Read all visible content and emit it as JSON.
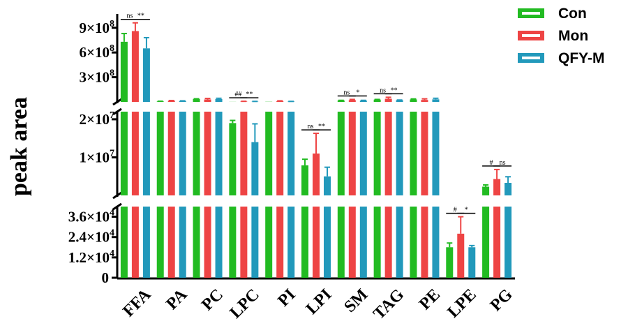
{
  "chart_data": {
    "type": "bar",
    "ylabel": "peak area",
    "categories": [
      "FFA",
      "PA",
      "PC",
      "LPC",
      "PI",
      "LPI",
      "SM",
      "TAG",
      "PE",
      "LPE",
      "PG"
    ],
    "colors": {
      "Con": "#22bb22",
      "Mon": "#ee4444",
      "QFY-M": "#2299bb"
    },
    "series": [
      {
        "name": "Con",
        "values": [
          730000000,
          0,
          0,
          0,
          0,
          7900000,
          0,
          0,
          0,
          18000,
          2300000
        ],
        "errors": [
          100000000,
          0,
          0,
          0,
          0,
          1600000,
          0,
          0,
          0,
          2500,
          450000
        ]
      },
      {
        "name": "Mon",
        "values": [
          860000000,
          0,
          0,
          0,
          0,
          11000000,
          0,
          0,
          0,
          26000,
          4300000
        ],
        "errors": [
          100000000,
          0,
          0,
          0,
          0,
          5300000,
          0,
          0,
          0,
          10000,
          2500000
        ]
      },
      {
        "name": "QFY-M",
        "values": [
          650000000,
          0,
          0,
          0,
          0,
          5000000,
          0,
          0,
          0,
          18000,
          3300000
        ],
        "errors": [
          130000000,
          0,
          0,
          0,
          0,
          2400000,
          0,
          0,
          0,
          1000,
          1600000
        ]
      }
    ],
    "segments": [
      {
        "name": "top",
        "ylim": [
          0,
          1000000000
        ],
        "ticks": [
          {
            "value": 300000000,
            "label": "3×10",
            "exp": "8"
          },
          {
            "value": 600000000,
            "label": "6×10",
            "exp": "8"
          },
          {
            "value": 900000000,
            "label": "9×10",
            "exp": "8"
          }
        ],
        "values": {
          "Con": [
            730000000,
            6000000,
            35000000,
            1000000,
            2000000,
            0,
            17000000,
            28000000,
            30000000,
            0,
            0
          ],
          "Mon": [
            860000000,
            13000000,
            30000000,
            4000000,
            10000000,
            0,
            22000000,
            38000000,
            24000000,
            0,
            0
          ],
          "QFY-M": [
            650000000,
            10000000,
            35000000,
            2000000,
            4000000,
            0,
            15000000,
            21000000,
            31000000,
            0,
            0
          ]
        },
        "errors": {
          "Con": [
            100000000,
            2000000,
            3000000,
            0,
            0,
            0,
            2000000,
            2000000,
            6000000,
            0,
            0
          ],
          "Mon": [
            100000000,
            4000000,
            12000000,
            3000000,
            3000000,
            0,
            8000000,
            18000000,
            13000000,
            0,
            0
          ],
          "QFY-M": [
            130000000,
            3000000,
            9000000,
            4000000,
            2000000,
            0,
            4000000,
            2000000,
            13000000,
            0,
            0
          ]
        }
      },
      {
        "name": "middle",
        "ylim": [
          0,
          22000000
        ],
        "ticks": [
          {
            "value": 10000000,
            "label": "1×10",
            "exp": "7"
          },
          {
            "value": 20000000,
            "label": "2×10",
            "exp": "7"
          }
        ],
        "values": {
          "Con": [
            22000000,
            22000000,
            22000000,
            19000000,
            22000000,
            7900000,
            22000000,
            22000000,
            22000000,
            0,
            2300000
          ],
          "Mon": [
            22000000,
            22000000,
            22000000,
            22000000,
            22000000,
            11000000,
            22000000,
            22000000,
            22000000,
            0,
            4300000
          ],
          "QFY-M": [
            22000000,
            22000000,
            22000000,
            14000000,
            22000000,
            5000000,
            22000000,
            22000000,
            22000000,
            0,
            3300000
          ]
        },
        "errors": {
          "Con": [
            0,
            0,
            0,
            700000,
            0,
            1600000,
            0,
            0,
            0,
            0,
            450000
          ],
          "Mon": [
            0,
            0,
            0,
            0,
            0,
            5300000,
            0,
            0,
            0,
            0,
            2500000
          ],
          "QFY-M": [
            0,
            0,
            0,
            4800000,
            0,
            2400000,
            0,
            0,
            0,
            0,
            1600000
          ]
        }
      },
      {
        "name": "bottom",
        "ylim": [
          0,
          42000
        ],
        "ticks": [
          {
            "value": 0,
            "label": "0",
            "exp": ""
          },
          {
            "value": 12000,
            "label": "1.2×10",
            "exp": "4"
          },
          {
            "value": 24000,
            "label": "2.4×10",
            "exp": "4"
          },
          {
            "value": 36000,
            "label": "3.6×10",
            "exp": "4"
          }
        ],
        "values": {
          "Con": [
            42000,
            42000,
            42000,
            42000,
            42000,
            42000,
            42000,
            42000,
            42000,
            18000,
            42000
          ],
          "Mon": [
            42000,
            42000,
            42000,
            42000,
            42000,
            42000,
            42000,
            42000,
            42000,
            26000,
            42000
          ],
          "QFY-M": [
            42000,
            42000,
            42000,
            42000,
            42000,
            42000,
            42000,
            42000,
            42000,
            18000,
            42000
          ]
        },
        "errors": {
          "Con": [
            0,
            0,
            0,
            0,
            0,
            0,
            0,
            0,
            0,
            2500,
            0
          ],
          "Mon": [
            0,
            0,
            0,
            0,
            0,
            0,
            0,
            0,
            0,
            10000,
            0
          ],
          "QFY-M": [
            0,
            0,
            0,
            0,
            0,
            0,
            0,
            0,
            0,
            1000,
            0
          ]
        }
      }
    ],
    "significance": [
      {
        "category": "FFA",
        "pair": "Con-Mon",
        "segment": "top",
        "text": "ns"
      },
      {
        "category": "FFA",
        "pair": "Mon-QFY-M",
        "segment": "top",
        "text": "**"
      },
      {
        "category": "LPC",
        "pair": "Con-Mon",
        "segment": "top",
        "text": "##"
      },
      {
        "category": "LPC",
        "pair": "Mon-QFY-M",
        "segment": "top",
        "text": "**"
      },
      {
        "category": "LPI",
        "pair": "Con-Mon",
        "segment": "middle",
        "text": "ns"
      },
      {
        "category": "LPI",
        "pair": "Mon-QFY-M",
        "segment": "middle",
        "text": "**"
      },
      {
        "category": "SM",
        "pair": "Con-Mon",
        "segment": "top",
        "text": "ns"
      },
      {
        "category": "SM",
        "pair": "Mon-QFY-M",
        "segment": "top",
        "text": "*"
      },
      {
        "category": "TAG",
        "pair": "Con-Mon",
        "segment": "top",
        "text": "ns"
      },
      {
        "category": "TAG",
        "pair": "Mon-QFY-M",
        "segment": "top",
        "text": "**"
      },
      {
        "category": "LPE",
        "pair": "Con-Mon",
        "segment": "bottom",
        "text": "#"
      },
      {
        "category": "LPE",
        "pair": "Mon-QFY-M",
        "segment": "bottom",
        "text": "*"
      },
      {
        "category": "PG",
        "pair": "Con-Mon",
        "segment": "middle",
        "text": "#"
      },
      {
        "category": "PG",
        "pair": "Mon-QFY-M",
        "segment": "middle",
        "text": "ns"
      }
    ],
    "legend": {
      "position": "top-right",
      "items": [
        "Con",
        "Mon",
        "QFY-M"
      ]
    },
    "grid": false
  }
}
